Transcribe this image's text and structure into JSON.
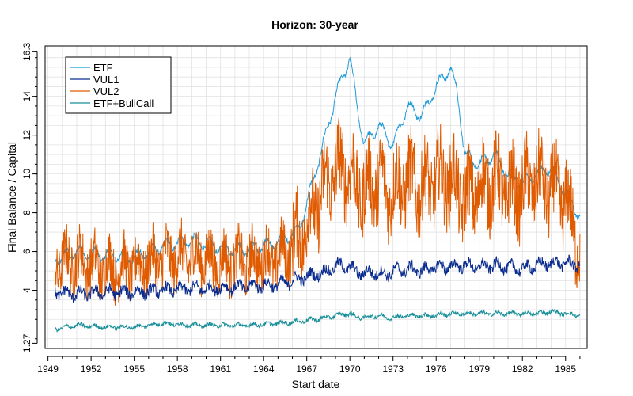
{
  "chart_data": {
    "type": "line",
    "title": "Horizon: 30-year",
    "xlabel": "Start date",
    "ylabel": "Final Balance / Capital",
    "x_ticks": [
      "1949",
      "1952",
      "1955",
      "1958",
      "1961",
      "1964",
      "1967",
      "1970",
      "1973",
      "1976",
      "1979",
      "1982",
      "1985"
    ],
    "y_ticks": [
      1.27,
      4,
      6,
      8,
      10,
      12,
      14,
      16.3
    ],
    "y_tick_labels": [
      "1.27",
      "4",
      "6",
      "8",
      "10",
      "12",
      "14",
      "16.3"
    ],
    "xlim": [
      1948.8,
      1986.5
    ],
    "ylim": [
      1.0,
      16.6
    ],
    "legend_position": "top-left",
    "grid": true,
    "x_years": [
      1949.5,
      1951,
      1953,
      1955,
      1957,
      1959,
      1961,
      1963,
      1965,
      1966.5,
      1967.5,
      1968.5,
      1969,
      1970,
      1970.5,
      1971,
      1972,
      1972.5,
      1973,
      1974,
      1975,
      1976,
      1977,
      1977.5,
      1978,
      1979,
      1980,
      1981,
      1982,
      1983,
      1984,
      1985,
      1986
    ],
    "series": [
      {
        "name": "ETF",
        "color": "#1f9bd7",
        "values": [
          5.6,
          6.0,
          5.8,
          5.7,
          6.3,
          6.6,
          6.2,
          6.1,
          6.5,
          7.2,
          9.8,
          12.5,
          14.0,
          16.0,
          13.5,
          11.5,
          12.5,
          12.0,
          11.5,
          13.5,
          13.0,
          14.5,
          15.5,
          14.0,
          11.0,
          10.5,
          11.0,
          10.0,
          9.5,
          10.0,
          10.3,
          9.0,
          7.8
        ]
      },
      {
        "name": "VUL1",
        "color": "#0a2c8f",
        "values": [
          3.9,
          3.8,
          3.9,
          3.9,
          4.0,
          4.1,
          4.1,
          4.2,
          4.3,
          4.6,
          4.8,
          5.0,
          5.3,
          5.2,
          4.9,
          4.9,
          4.9,
          4.8,
          5.0,
          5.1,
          5.0,
          5.2,
          5.2,
          5.3,
          5.3,
          5.2,
          5.3,
          5.2,
          5.1,
          5.3,
          5.4,
          5.4,
          5.3
        ]
      },
      {
        "name": "VUL2",
        "color": "#e05a00",
        "values": [
          5.2,
          5.4,
          5.0,
          5.0,
          5.5,
          5.6,
          5.3,
          5.4,
          5.5,
          6.5,
          8.0,
          9.5,
          10.0,
          10.0,
          9.0,
          9.0,
          9.5,
          9.0,
          9.0,
          9.5,
          9.0,
          9.5,
          9.5,
          9.0,
          8.5,
          9.0,
          9.5,
          8.8,
          9.0,
          9.5,
          9.0,
          8.5,
          6.0
        ]
      },
      {
        "name": "ETF+BullCall",
        "color": "#178f99",
        "values": [
          2.0,
          2.2,
          2.1,
          2.1,
          2.3,
          2.2,
          2.2,
          2.2,
          2.3,
          2.4,
          2.5,
          2.6,
          2.7,
          2.8,
          2.6,
          2.6,
          2.7,
          2.6,
          2.6,
          2.7,
          2.7,
          2.7,
          2.8,
          2.8,
          2.8,
          2.8,
          2.8,
          2.8,
          2.8,
          2.8,
          2.9,
          2.8,
          2.7
        ]
      }
    ]
  }
}
